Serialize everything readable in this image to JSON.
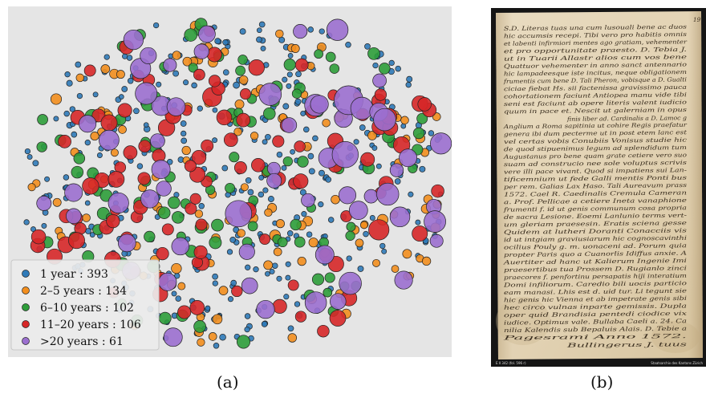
{
  "figure": {
    "panel_a_label": "(a)",
    "panel_b_label": "(b)"
  },
  "chart_data": {
    "type": "scatter",
    "title": "",
    "xlabel": "",
    "ylabel": "",
    "grid": false,
    "legend_position": "bottom-left",
    "background_color": "#e5e5e5",
    "series": [
      {
        "name": "1 year : 393",
        "color": "#2f7ab8",
        "count": 393
      },
      {
        "name": "2–5 years : 134",
        "color": "#f28e1e",
        "count": 134
      },
      {
        "name": "6–10 years : 102",
        "color": "#2e9d3a",
        "count": 102
      },
      {
        "name": "11–20 years : 106",
        "color": "#d62728",
        "count": 106
      },
      {
        "name": ">20 years : 61",
        "color": "#9b6fcf",
        "count": 61
      }
    ]
  },
  "manuscript": {
    "footer_left": "E II 342 (fol. 596 r)",
    "footer_right": "Staatsarchiv des Kantons Zürich",
    "page_mark": "19",
    "lines": [
      "S.D. Literas tuas una cum lusouali bene ac duos",
      "hic accumsis recepi. Tibi vero pro habitis omnis",
      "et labenti infirmiori mentes ago gratiam, vehementer",
      "et pro opportunitate praesto. D. Tebia J.",
      "ut in Tuarii Allastr alios cum vos bene",
      "Quattuor vehementer in anno sanct antennario",
      "hic lampadeesque iste incitus, neque obligationem",
      "frumentis cum bene D. Tali Pheron, vobisque a D. Gualti",
      "ciciae fiebat Hs. sii factenissa gravissimo pauca",
      "cohortationem faciunt Antiopea manu vide tibi",
      "seni est faciunt ab opere literis valent iudicio",
      "quum in pace et. Nescit ut galerniam in opus",
      "finis liber ad. Cardinalis a D. Lamoc g",
      "Anglium a Roma sapitinia ut cohire Regis praefatur",
      "genera ibi dum pecterme ut in post etem lanc est",
      "vel certas vobis Conubiis Vonisus studie hic",
      "de quod stipuenimus legum ad splendidum tum",
      "Augustanus pro bene quam grate cetiere vero suo",
      "suam ad construcio nee sole voluptus scrivis",
      "vere illi pace vivant. Quod si impatiens sui Lan-",
      "tificemnium ut fede Galli mentis Ponti bus",
      "per rem. Galias Lax Haso. Tali Aureavum prass",
      "1572. Cael R. Caedinalis Cremula Cameran",
      "a. Prof. Pellicae a cetiere Ineta vanaphione",
      "frumenti f. id ut genis communum cosa propria",
      "de sacra Lesione. Eoemi Lanlunio terms vert-",
      "um gleriam praesesin. Eratis sciena gesse",
      "Quidem at lutheri Doranti Conacciis vis",
      "id ut intgiam graviusiarum hic cognoscavinthi",
      "ocilius Pouly g. m. uonaceni ad. Porum quia",
      "propter Paris quo a Cuanorlis Idiffus anxie. A",
      "Auertiter ad hanc ut Kalierum Ingenie Imi",
      "praesertibus tua Prossem D. Rugianlo zinci",
      "praecores f. penfortinu persapatis hiji interatium",
      "Domi infiliorum. Caredio bili uocis particio",
      "eam manasi. Lhis est d. uid tur. Li tegunt sie",
      "hic genis hic Vienna et ab impetrate genis sibi",
      "hec circo vulnas inparte gemissis. Dupla",
      "oper quid Brandisia pentedi ciodice vix",
      "iudice. Optimus vale. Bullaba Caeli a. 24. Ca",
      "nilia Kalendis sub Bepaluis Alais. D. Tebie a",
      "Pagesrami Anno 1572.",
      "Bullingerus J. tuus"
    ]
  }
}
